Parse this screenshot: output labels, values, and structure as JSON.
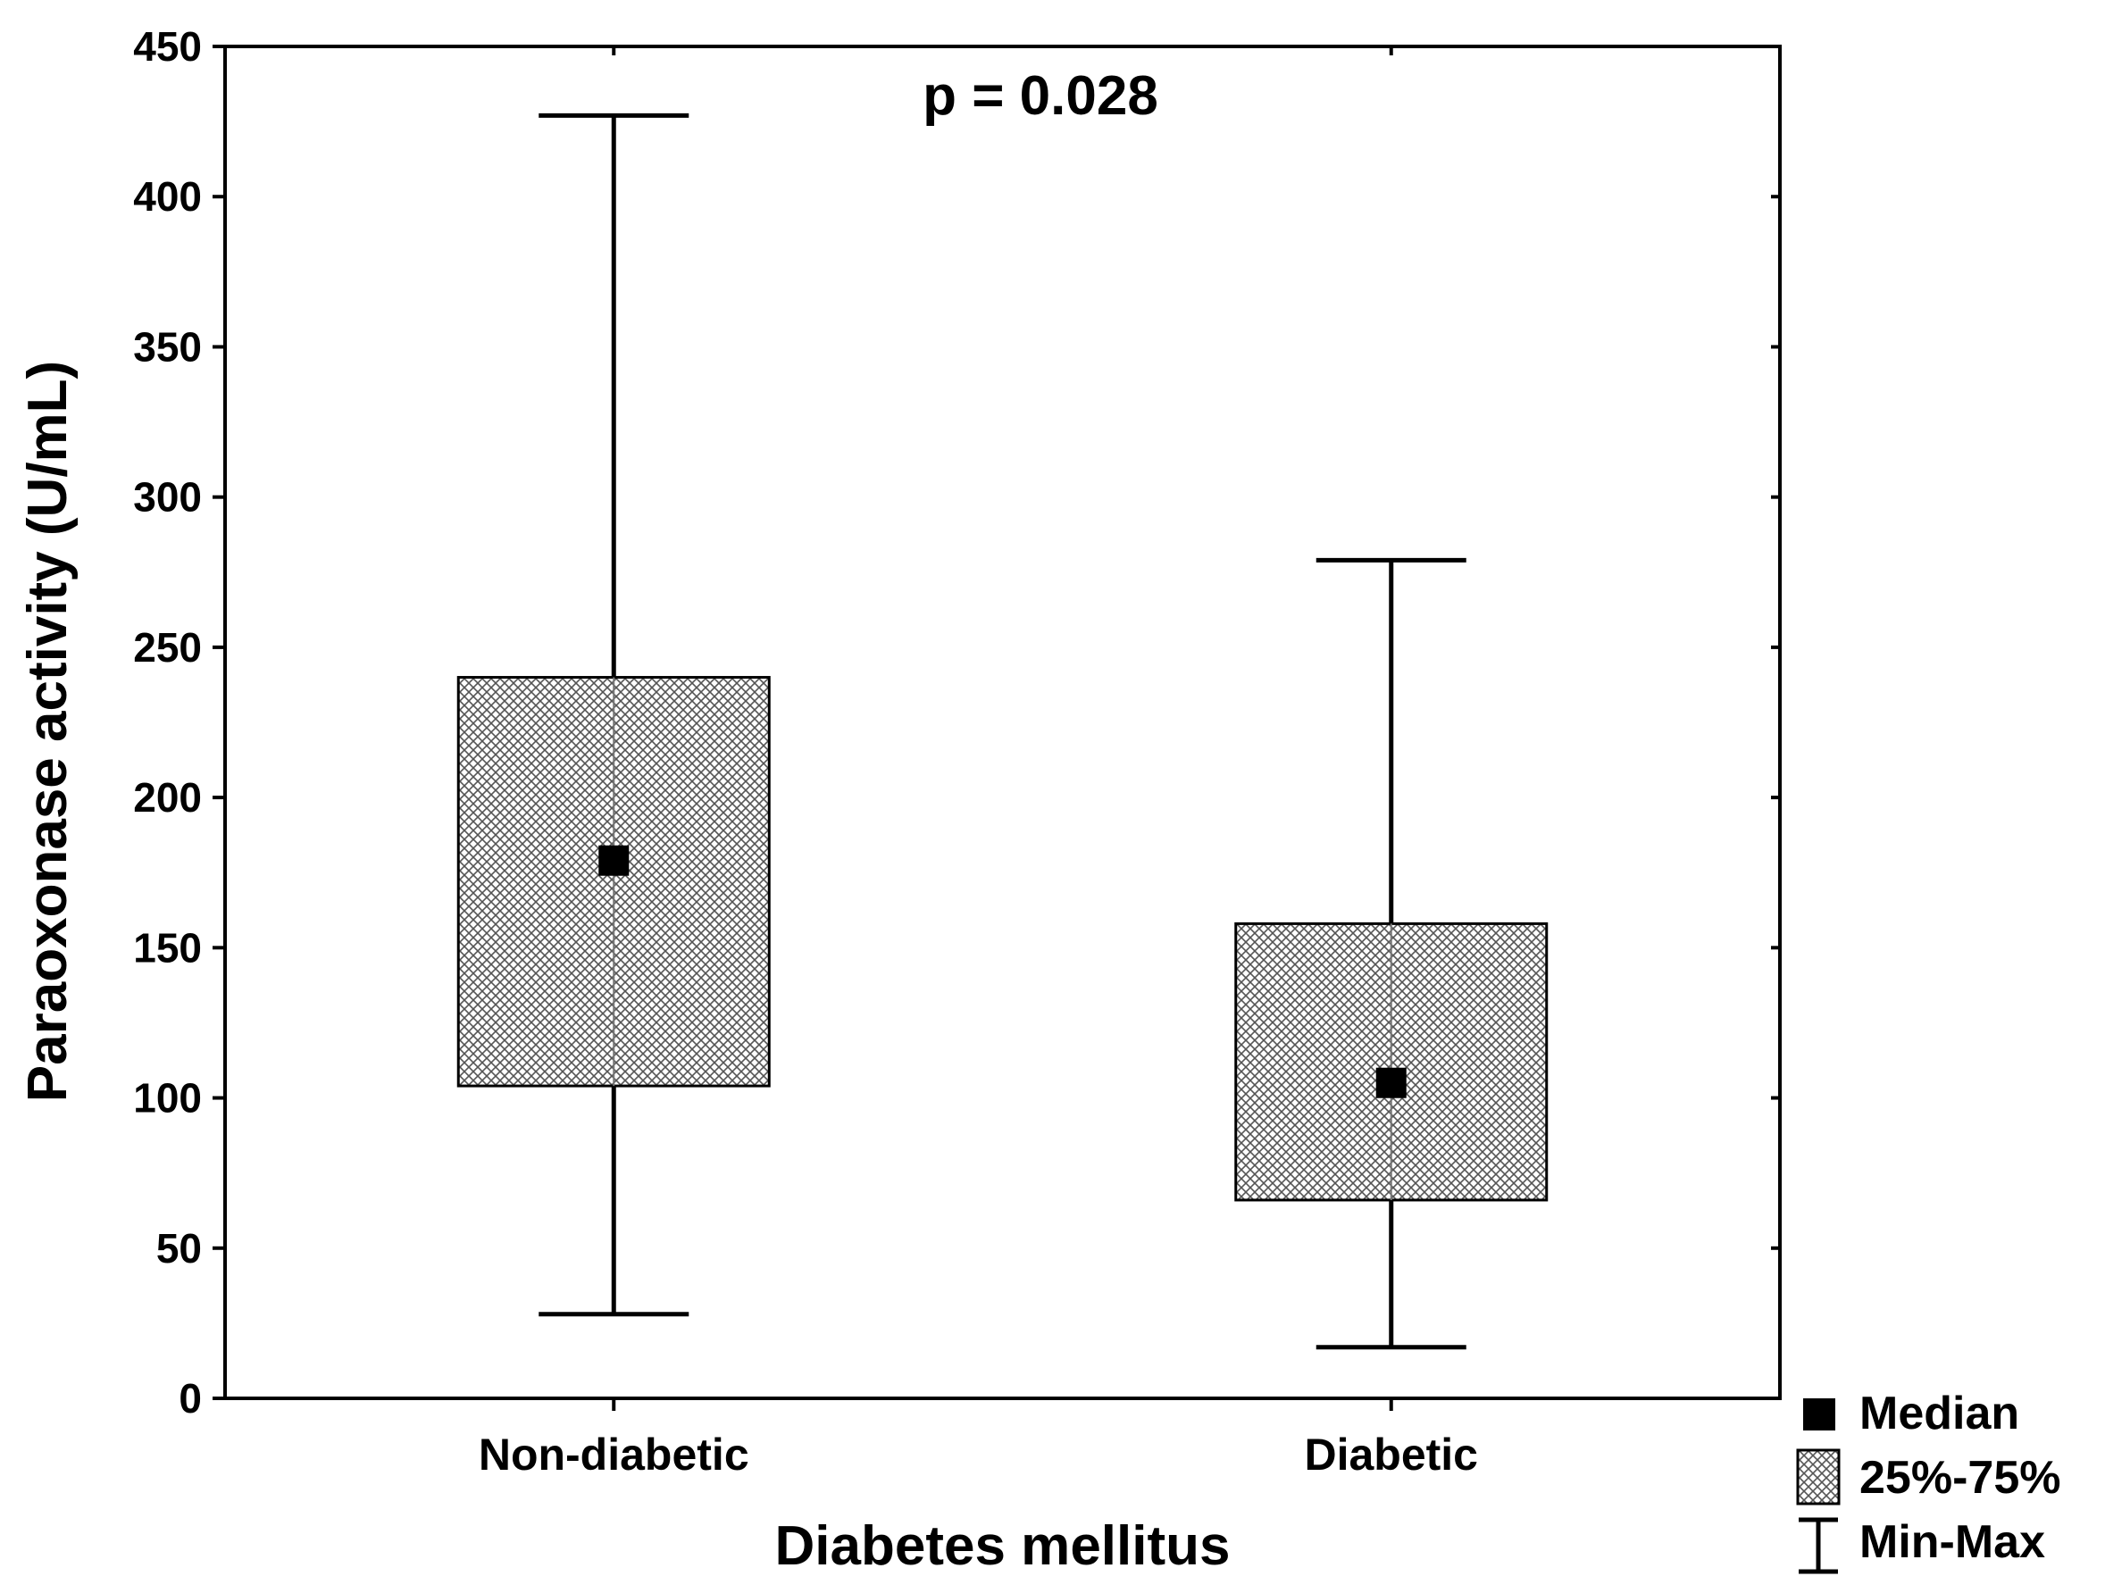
{
  "chart_data": {
    "type": "boxplot",
    "title": "",
    "xlabel": "Diabetes mellitus",
    "ylabel": "Paraoxonase activity (U/mL)",
    "ylim": [
      0,
      450
    ],
    "yticks": [
      0,
      50,
      100,
      150,
      200,
      250,
      300,
      350,
      400,
      450
    ],
    "categories": [
      "Non-diabetic",
      "Diabetic"
    ],
    "boxes": [
      {
        "name": "Non-diabetic",
        "min": 28,
        "q1": 104,
        "median": 179,
        "q3": 240,
        "max": 427
      },
      {
        "name": "Diabetic",
        "min": 17,
        "q1": 66,
        "median": 105,
        "q3": 158,
        "max": 279
      }
    ],
    "annotation": "p = 0.028",
    "legend": {
      "position": "bottom-right",
      "items": [
        {
          "label": "Median",
          "symbol": "filled-square"
        },
        {
          "label": "25%-75%",
          "symbol": "hatched-box"
        },
        {
          "label": "Min-Max",
          "symbol": "whisker"
        }
      ]
    },
    "colors": {
      "ink": "#000000",
      "box_fill": "#d9d9d9",
      "background": "#ffffff"
    }
  }
}
